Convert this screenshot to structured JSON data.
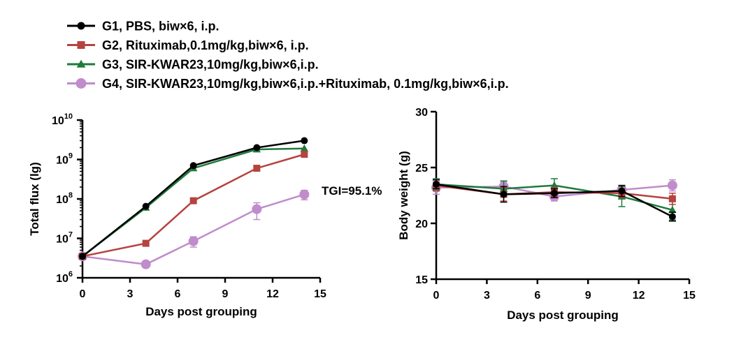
{
  "legend": [
    {
      "label": "G1, PBS, biw×6, i.p.",
      "color": "#000000",
      "marker": "circle"
    },
    {
      "label": "G2, Rituximab,0.1mg/kg,biw×6, i.p.",
      "color": "#b5433f",
      "marker": "square"
    },
    {
      "label": "G3, SIR-KWAR23,10mg/kg,biw×6,i.p.",
      "color": "#1e7b3c",
      "marker": "triangle"
    },
    {
      "label": "G4, SIR-KWAR23,10mg/kg,biw×6,i.p.+Rituximab, 0.1mg/kg,biw×6,i.p.",
      "color": "#c08ccc",
      "marker": "circle"
    }
  ],
  "chart_data": [
    {
      "type": "line",
      "xlabel": "Days post grouping",
      "ylabel": "Total flux (lg)",
      "xlim": [
        0,
        15
      ],
      "xticks": [
        "0",
        "3",
        "6",
        "9",
        "12",
        "15"
      ],
      "ylim": [
        1000000,
        10000000000
      ],
      "yscale": "log",
      "ytick_labels": [
        {
          "base": "10",
          "exp": "6"
        },
        {
          "base": "10",
          "exp": "7"
        },
        {
          "base": "10",
          "exp": "8"
        },
        {
          "base": "10",
          "exp": "9"
        },
        {
          "base": "10",
          "exp": "10"
        }
      ],
      "x": [
        0,
        4,
        7,
        11,
        14
      ],
      "annotation": "TGI=95.1%",
      "series": [
        {
          "name": "G1, PBS, biw×6, i.p.",
          "values": [
            3500000,
            65000000,
            700000000,
            2000000000,
            3000000000
          ],
          "err": [
            0,
            0,
            0,
            0,
            0
          ]
        },
        {
          "name": "G2, Rituximab,0.1mg/kg,biw×6, i.p.",
          "values": [
            3500000,
            7500000,
            90000000,
            600000000,
            1350000000
          ],
          "err": [
            0,
            0,
            0,
            0,
            0
          ]
        },
        {
          "name": "G3, SIR-KWAR23,10mg/kg,biw×6,i.p.",
          "values": [
            3500000,
            60000000,
            600000000,
            1800000000,
            1900000000
          ],
          "err": [
            0,
            0,
            0,
            0,
            0
          ]
        },
        {
          "name": "G4, SIR-KWAR23,10mg/kg,biw×6,i.p.+Rituximab, 0.1mg/kg,biw×6,i.p.",
          "values": [
            3500000,
            2200000,
            8500000,
            55000000,
            130000000
          ],
          "err": [
            0,
            300000,
            2500000,
            25000000,
            35000000
          ]
        }
      ]
    },
    {
      "type": "line",
      "xlabel": "Days post grouping",
      "ylabel": "Body weight (g)",
      "xlim": [
        0,
        15
      ],
      "xticks": [
        "0",
        "3",
        "6",
        "9",
        "12",
        "15"
      ],
      "ylim": [
        15,
        30
      ],
      "yticks": [
        "15",
        "20",
        "25",
        "30"
      ],
      "x": [
        0,
        4,
        7,
        11,
        14
      ],
      "series": [
        {
          "name": "G1, PBS, biw×6, i.p.",
          "values": [
            23.5,
            22.6,
            22.7,
            22.9,
            20.6
          ],
          "err": [
            0.4,
            0.7,
            0.4,
            0.5,
            0.4
          ]
        },
        {
          "name": "G2, Rituximab,0.1mg/kg,biw×6, i.p.",
          "values": [
            23.4,
            22.6,
            22.8,
            22.7,
            22.2
          ],
          "err": [
            0.5,
            0.6,
            0.4,
            0.4,
            0.5
          ]
        },
        {
          "name": "G3, SIR-KWAR23,10mg/kg,biw×6,i.p.",
          "values": [
            23.5,
            23.1,
            23.4,
            22.4,
            21.2
          ],
          "err": [
            0.5,
            0.7,
            0.6,
            0.9,
            0.9
          ]
        },
        {
          "name": "G4, SIR-KWAR23,10mg/kg,biw×6,i.p.+Rituximab, 0.1mg/kg,biw×6,i.p.",
          "values": [
            23.2,
            23.3,
            22.4,
            23.0,
            23.4
          ],
          "err": [
            0.6,
            0.4,
            0.4,
            0.4,
            0.5
          ]
        }
      ]
    }
  ]
}
